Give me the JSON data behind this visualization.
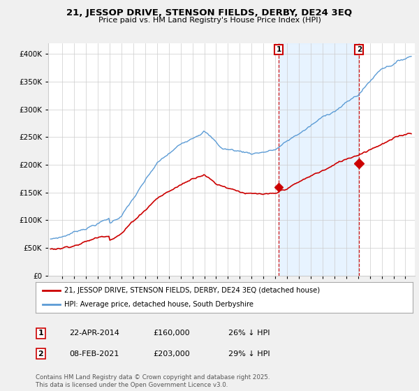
{
  "title": "21, JESSOP DRIVE, STENSON FIELDS, DERBY, DE24 3EQ",
  "subtitle": "Price paid vs. HM Land Registry's House Price Index (HPI)",
  "legend_line1": "21, JESSOP DRIVE, STENSON FIELDS, DERBY, DE24 3EQ (detached house)",
  "legend_line2": "HPI: Average price, detached house, South Derbyshire",
  "annotation1_date": "22-APR-2014",
  "annotation1_price": 160000,
  "annotation1_text": "26% ↓ HPI",
  "annotation2_date": "08-FEB-2021",
  "annotation2_price": 203000,
  "annotation2_text": "29% ↓ HPI",
  "footnote": "Contains HM Land Registry data © Crown copyright and database right 2025.\nThis data is licensed under the Open Government Licence v3.0.",
  "hpi_color": "#5b9bd5",
  "price_color": "#cc0000",
  "shade_color": "#ddeeff",
  "ylim_min": 0,
  "ylim_max": 420000,
  "yticks": [
    0,
    50000,
    100000,
    150000,
    200000,
    250000,
    300000,
    350000,
    400000
  ],
  "background_color": "#f0f0f0",
  "plot_bg_color": "#ffffff",
  "ann1_year": 2014.3,
  "ann2_year": 2021.1
}
